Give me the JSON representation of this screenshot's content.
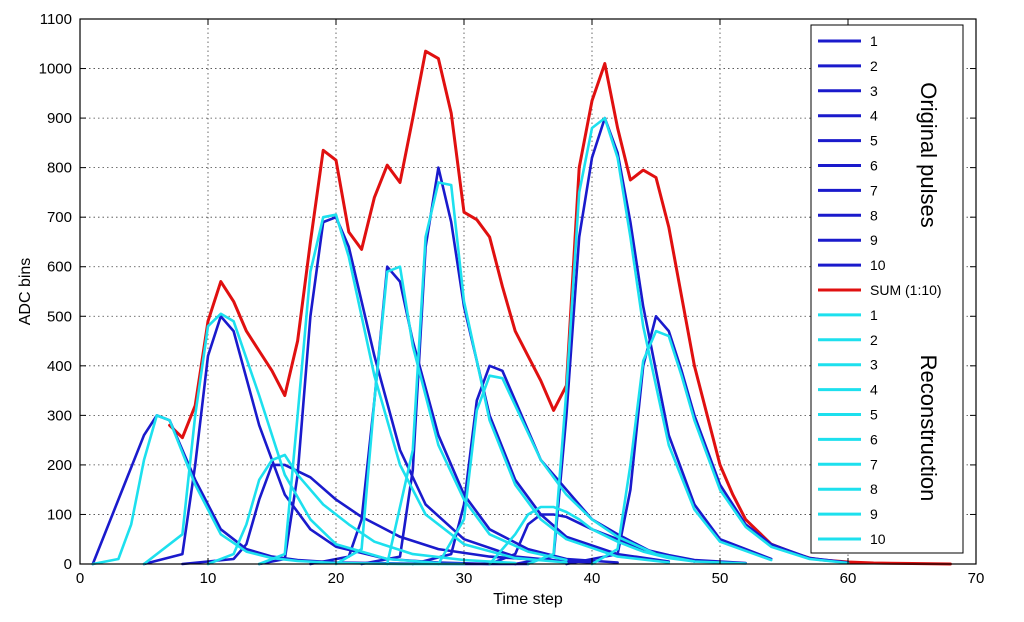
{
  "chart_data": {
    "type": "line",
    "title": "",
    "xlabel": "Time step",
    "ylabel": "ADC bins",
    "xlim": [
      0,
      70
    ],
    "ylim": [
      0,
      1100
    ],
    "xticks": [
      0,
      10,
      20,
      30,
      40,
      50,
      60,
      70
    ],
    "yticks": [
      0,
      100,
      200,
      300,
      400,
      500,
      600,
      700,
      800,
      900,
      1000,
      1100
    ],
    "grid": true,
    "grid_style": "dotted",
    "legend_position": "right, inside plot",
    "legend_group_titles": [
      "Original pulses",
      "Reconstruction"
    ],
    "colors": {
      "original": "#1a1acc",
      "sum": "#e01010",
      "reconstruction": "#1de0ee"
    },
    "series": [
      {
        "name": "1",
        "group": "original",
        "x": [
          1,
          5,
          6,
          7,
          9,
          11,
          13,
          15,
          17,
          20,
          25,
          30,
          35
        ],
        "y": [
          0,
          260,
          300,
          290,
          170,
          70,
          30,
          15,
          8,
          3,
          1,
          0,
          0
        ]
      },
      {
        "name": "2",
        "group": "original",
        "x": [
          5,
          8,
          9,
          10,
          11,
          12,
          14,
          16,
          18,
          20,
          24,
          28,
          32
        ],
        "y": [
          0,
          20,
          200,
          420,
          500,
          470,
          280,
          140,
          70,
          35,
          10,
          3,
          0
        ]
      },
      {
        "name": "3",
        "group": "original",
        "x": [
          8,
          12,
          13,
          14,
          15,
          16,
          18,
          20,
          22,
          25,
          28,
          32,
          36,
          40
        ],
        "y": [
          0,
          10,
          40,
          130,
          200,
          200,
          175,
          130,
          95,
          55,
          30,
          15,
          8,
          3
        ]
      },
      {
        "name": "4",
        "group": "original",
        "x": [
          14,
          16,
          17,
          18,
          19,
          20,
          21,
          23,
          25,
          27,
          30,
          34,
          38
        ],
        "y": [
          0,
          10,
          180,
          500,
          690,
          700,
          640,
          420,
          230,
          120,
          50,
          15,
          5
        ]
      },
      {
        "name": "5",
        "group": "original",
        "x": [
          18,
          21,
          22,
          23,
          24,
          25,
          26,
          28,
          30,
          32,
          35,
          38,
          42
        ],
        "y": [
          0,
          15,
          90,
          330,
          600,
          570,
          450,
          260,
          140,
          70,
          30,
          10,
          3
        ]
      },
      {
        "name": "6",
        "group": "original",
        "x": [
          22,
          25,
          26,
          27,
          28,
          29,
          30,
          32,
          34,
          36,
          38,
          42,
          46
        ],
        "y": [
          0,
          15,
          190,
          640,
          800,
          690,
          520,
          300,
          170,
          100,
          55,
          20,
          5
        ]
      },
      {
        "name": "7",
        "group": "original",
        "x": [
          26,
          29,
          30,
          31,
          32,
          33,
          34,
          36,
          38,
          40,
          42,
          45,
          48
        ],
        "y": [
          0,
          20,
          120,
          330,
          400,
          390,
          330,
          210,
          150,
          90,
          60,
          20,
          5
        ]
      },
      {
        "name": "8",
        "group": "original",
        "x": [
          32,
          34,
          35,
          36,
          37,
          38,
          40,
          42,
          44,
          46,
          48,
          52
        ],
        "y": [
          0,
          20,
          80,
          100,
          100,
          95,
          70,
          50,
          30,
          18,
          8,
          2
        ]
      },
      {
        "name": "9",
        "group": "original",
        "x": [
          34,
          37,
          38,
          39,
          40,
          41,
          42,
          43,
          44,
          46,
          48,
          50,
          54
        ],
        "y": [
          0,
          15,
          300,
          660,
          820,
          900,
          830,
          690,
          520,
          260,
          120,
          50,
          10
        ]
      },
      {
        "name": "10",
        "group": "original",
        "x": [
          38,
          42,
          43,
          44,
          45,
          46,
          47,
          48,
          50,
          52,
          54,
          57,
          60
        ],
        "y": [
          0,
          20,
          150,
          400,
          500,
          470,
          390,
          300,
          160,
          80,
          40,
          12,
          3
        ]
      },
      {
        "name": "SUM (1:10)",
        "group": "sum",
        "x": [
          7,
          8,
          9,
          10,
          11,
          12,
          13,
          14,
          15,
          16,
          17,
          18,
          19,
          20,
          21,
          22,
          23,
          24,
          25,
          26,
          27,
          28,
          29,
          30,
          31,
          32,
          33,
          34,
          35,
          36,
          37,
          38,
          39,
          40,
          41,
          42,
          43,
          44,
          45,
          46,
          47,
          48,
          49,
          50,
          51,
          52,
          53,
          54,
          55,
          56,
          57,
          58,
          60,
          62,
          65,
          68
        ],
        "y": [
          280,
          255,
          320,
          490,
          570,
          530,
          470,
          430,
          390,
          340,
          450,
          650,
          835,
          815,
          670,
          635,
          740,
          805,
          770,
          900,
          1035,
          1020,
          910,
          710,
          695,
          660,
          560,
          470,
          420,
          370,
          310,
          360,
          800,
          935,
          1010,
          880,
          775,
          795,
          780,
          680,
          540,
          400,
          300,
          200,
          140,
          90,
          65,
          40,
          30,
          20,
          12,
          8,
          4,
          2,
          1,
          0
        ]
      },
      {
        "name": "1",
        "group": "reconstruction",
        "x": [
          1,
          3,
          4,
          5,
          6,
          7,
          9,
          11,
          13,
          15,
          17,
          20,
          25,
          30
        ],
        "y": [
          0,
          10,
          80,
          210,
          300,
          290,
          160,
          60,
          25,
          12,
          6,
          2,
          0,
          0
        ]
      },
      {
        "name": "2",
        "group": "reconstruction",
        "x": [
          5,
          8,
          9,
          10,
          11,
          12,
          14,
          16,
          18,
          20,
          24,
          28
        ],
        "y": [
          0,
          60,
          300,
          480,
          505,
          490,
          340,
          180,
          90,
          40,
          10,
          2
        ]
      },
      {
        "name": "3",
        "group": "reconstruction",
        "x": [
          10,
          12,
          13,
          14,
          15,
          16,
          17,
          19,
          21,
          23,
          26,
          30,
          34
        ],
        "y": [
          0,
          20,
          80,
          170,
          210,
          220,
          180,
          120,
          80,
          45,
          20,
          8,
          2
        ]
      },
      {
        "name": "4",
        "group": "reconstruction",
        "x": [
          14,
          16,
          17,
          18,
          19,
          20,
          21,
          23,
          25,
          27,
          30,
          34,
          38
        ],
        "y": [
          0,
          20,
          300,
          590,
          700,
          705,
          620,
          380,
          200,
          100,
          40,
          12,
          3
        ]
      },
      {
        "name": "5",
        "group": "reconstruction",
        "x": [
          20,
          22,
          23,
          24,
          25,
          26,
          28,
          30,
          32,
          35,
          38
        ],
        "y": [
          0,
          30,
          330,
          590,
          600,
          440,
          240,
          130,
          60,
          25,
          8
        ]
      },
      {
        "name": "6",
        "group": "reconstruction",
        "x": [
          24,
          26,
          27,
          28,
          29,
          30,
          32,
          34,
          36,
          38,
          42,
          46
        ],
        "y": [
          0,
          230,
          660,
          770,
          765,
          530,
          290,
          160,
          90,
          50,
          15,
          3
        ]
      },
      {
        "name": "7",
        "group": "reconstruction",
        "x": [
          28,
          30,
          31,
          32,
          33,
          34,
          36,
          38,
          40,
          42,
          45,
          48
        ],
        "y": [
          0,
          90,
          310,
          380,
          375,
          320,
          210,
          140,
          90,
          55,
          20,
          5
        ]
      },
      {
        "name": "8",
        "group": "reconstruction",
        "x": [
          32,
          34,
          35,
          36,
          37,
          38,
          39,
          40,
          42,
          44,
          46,
          48,
          52
        ],
        "y": [
          0,
          60,
          100,
          115,
          115,
          105,
          90,
          70,
          45,
          25,
          12,
          5,
          1
        ]
      },
      {
        "name": "9",
        "group": "reconstruction",
        "x": [
          35,
          37,
          38,
          39,
          40,
          41,
          42,
          43,
          44,
          46,
          48,
          50,
          54
        ],
        "y": [
          0,
          20,
          350,
          750,
          880,
          900,
          820,
          660,
          480,
          240,
          110,
          45,
          8
        ]
      },
      {
        "name": "10",
        "group": "reconstruction",
        "x": [
          40,
          42,
          43,
          44,
          45,
          46,
          47,
          48,
          50,
          52,
          54,
          57,
          60
        ],
        "y": [
          0,
          30,
          200,
          410,
          470,
          460,
          380,
          290,
          150,
          75,
          35,
          10,
          2
        ]
      }
    ]
  }
}
